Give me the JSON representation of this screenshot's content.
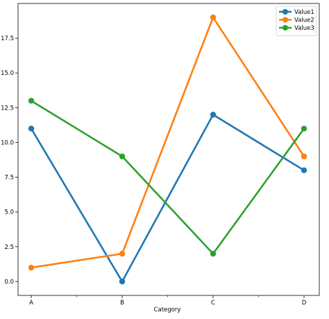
{
  "chart_data": {
    "type": "line",
    "title": "",
    "xlabel": "Category",
    "ylabel": "",
    "categories": [
      "A",
      "B",
      "C",
      "D"
    ],
    "ylim": [
      -1,
      20
    ],
    "yticks": [
      0.0,
      2.5,
      5.0,
      7.5,
      10.0,
      12.5,
      15.0,
      17.5
    ],
    "ytick_labels": [
      "0.0",
      "2.5",
      "5.0",
      "7.5",
      "10.0",
      "12.5",
      "15.0",
      "17.5"
    ],
    "grid": false,
    "legend_position": "top-right",
    "series": [
      {
        "name": "Value1",
        "values": [
          11,
          0,
          12,
          8
        ],
        "color": "#1f77b4"
      },
      {
        "name": "Value2",
        "values": [
          1,
          2,
          19,
          9
        ],
        "color": "#ff7f0e"
      },
      {
        "name": "Value3",
        "values": [
          13,
          9,
          2,
          11
        ],
        "color": "#2ca02c"
      }
    ]
  }
}
